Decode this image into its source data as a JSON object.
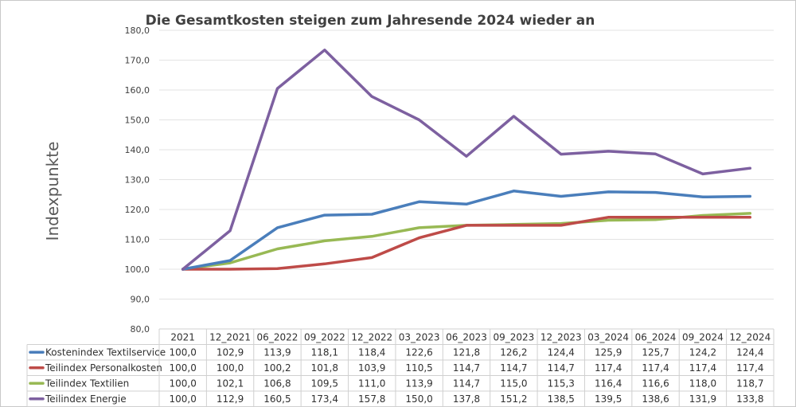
{
  "chart_data": {
    "type": "line",
    "title": "Die Gesamtkosten steigen zum Jahresende 2024 wieder an",
    "xlabel": "",
    "ylabel": "Indexpunkte",
    "ylim": [
      80,
      180
    ],
    "y_ticks": [
      "80,0",
      "90,0",
      "100,0",
      "110,0",
      "120,0",
      "130,0",
      "140,0",
      "150,0",
      "160,0",
      "170,0",
      "180,0"
    ],
    "grid": true,
    "legend": "data-table",
    "categories": [
      "2021",
      "12_2021",
      "06_2022",
      "09_2022",
      "12_2022",
      "03_2023",
      "06_2023",
      "09_2023",
      "12_2023",
      "03_2024",
      "06_2024",
      "09_2024",
      "12_2024"
    ],
    "series": [
      {
        "name": "Kostenindex Textilservice",
        "color": "#4a7ebb",
        "values": [
          100.0,
          102.9,
          113.9,
          118.1,
          118.4,
          122.6,
          121.8,
          126.2,
          124.4,
          125.9,
          125.7,
          124.2,
          124.4
        ],
        "labels": [
          "100,0",
          "102,9",
          "113,9",
          "118,1",
          "118,4",
          "122,6",
          "121,8",
          "126,2",
          "124,4",
          "125,9",
          "125,7",
          "124,2",
          "124,4"
        ]
      },
      {
        "name": "Teilindex Personalkosten",
        "color": "#be4b48",
        "values": [
          100.0,
          100.0,
          100.2,
          101.8,
          103.9,
          110.5,
          114.7,
          114.7,
          114.7,
          117.4,
          117.4,
          117.4,
          117.4
        ],
        "labels": [
          "100,0",
          "100,0",
          "100,2",
          "101,8",
          "103,9",
          "110,5",
          "114,7",
          "114,7",
          "114,7",
          "117,4",
          "117,4",
          "117,4",
          "117,4"
        ]
      },
      {
        "name": "Teilindex Textilien",
        "color": "#98b954",
        "values": [
          100.0,
          102.1,
          106.8,
          109.5,
          111.0,
          113.9,
          114.7,
          115.0,
          115.3,
          116.4,
          116.6,
          118.0,
          118.7
        ],
        "labels": [
          "100,0",
          "102,1",
          "106,8",
          "109,5",
          "111,0",
          "113,9",
          "114,7",
          "115,0",
          "115,3",
          "116,4",
          "116,6",
          "118,0",
          "118,7"
        ]
      },
      {
        "name": "Teilindex Energie",
        "color": "#7d60a0",
        "values": [
          100.0,
          112.9,
          160.5,
          173.4,
          157.8,
          150.0,
          137.8,
          151.2,
          138.5,
          139.5,
          138.6,
          131.9,
          133.8
        ],
        "labels": [
          "100,0",
          "112,9",
          "160,5",
          "173,4",
          "157,8",
          "150,0",
          "137,8",
          "151,2",
          "138,5",
          "139,5",
          "138,6",
          "131,9",
          "133,8"
        ]
      }
    ]
  }
}
